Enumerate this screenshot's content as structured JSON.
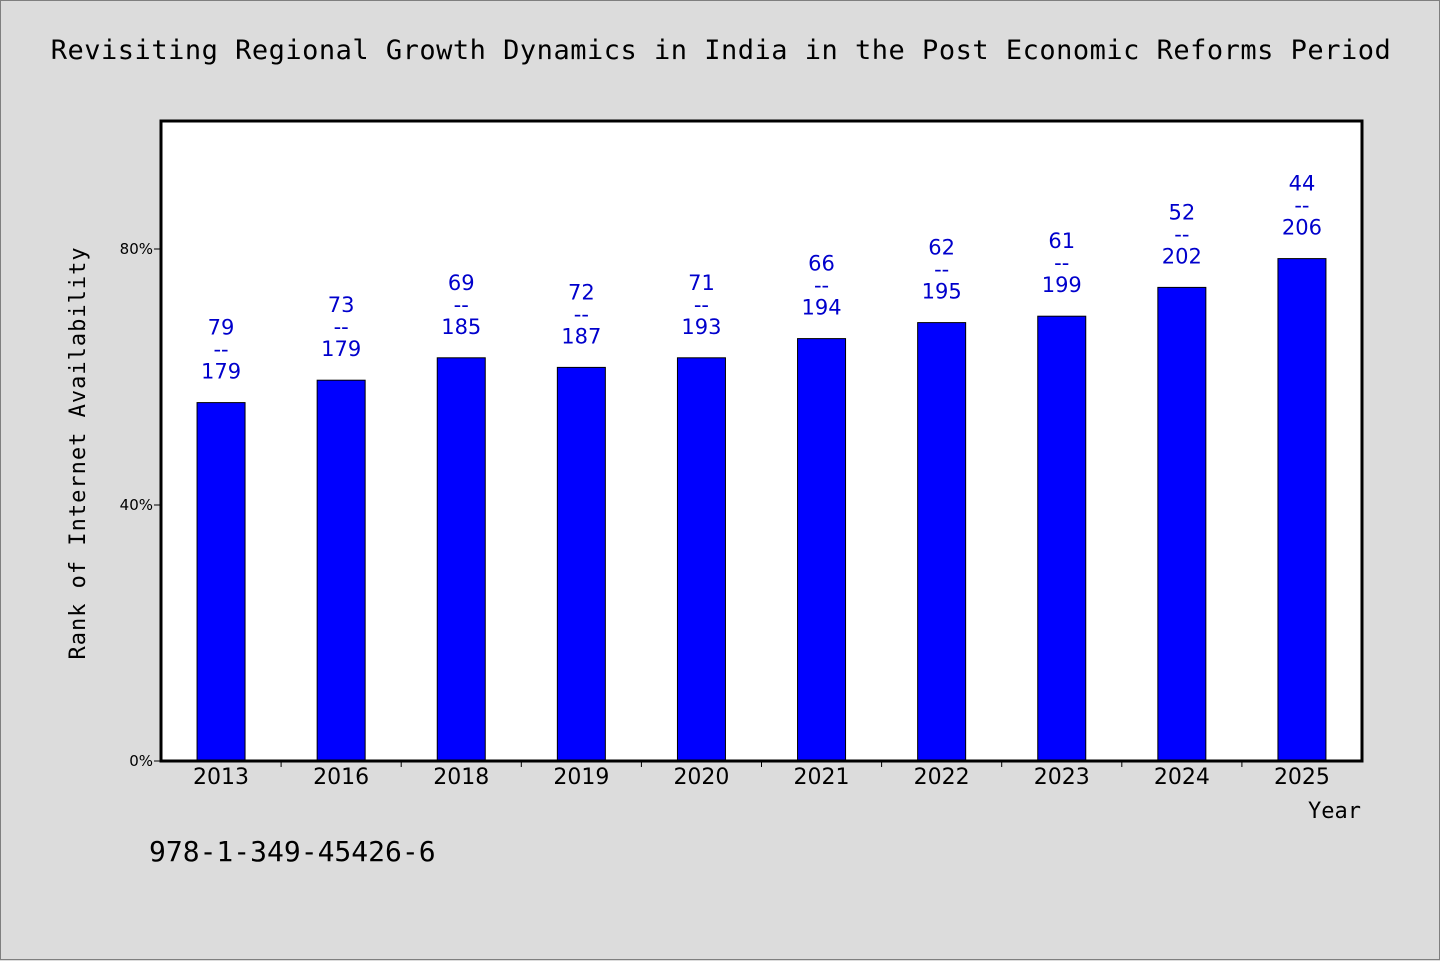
{
  "chart_data": {
    "type": "bar",
    "title": "Revisiting Regional Growth Dynamics in India in the Post Economic Reforms Period",
    "xlabel": "Year",
    "ylabel": "Rank of Internet Availability",
    "categories": [
      "2013",
      "2016",
      "2018",
      "2019",
      "2020",
      "2021",
      "2022",
      "2023",
      "2024",
      "2025"
    ],
    "values": [
      56,
      59.5,
      63,
      61.5,
      63,
      66,
      68.5,
      69.5,
      74,
      78.5
    ],
    "annotations": [
      {
        "top": "79",
        "sep": "--",
        "bottom": "179"
      },
      {
        "top": "73",
        "sep": "--",
        "bottom": "179"
      },
      {
        "top": "69",
        "sep": "--",
        "bottom": "185"
      },
      {
        "top": "72",
        "sep": "--",
        "bottom": "187"
      },
      {
        "top": "71",
        "sep": "--",
        "bottom": "193"
      },
      {
        "top": "66",
        "sep": "--",
        "bottom": "194"
      },
      {
        "top": "62",
        "sep": "--",
        "bottom": "195"
      },
      {
        "top": "61",
        "sep": "--",
        "bottom": "199"
      },
      {
        "top": "52",
        "sep": "--",
        "bottom": "202"
      },
      {
        "top": "44",
        "sep": "--",
        "bottom": "206"
      }
    ],
    "ylim": [
      0,
      100
    ],
    "yticks": [
      {
        "value": 0,
        "label": "0%"
      },
      {
        "value": 40,
        "label": "40%"
      },
      {
        "value": 80,
        "label": "80%"
      }
    ],
    "grid": false,
    "legend": "none",
    "colors": {
      "bar": "#0000ff",
      "annotation": "#0000cc",
      "background": "#dcdcdc",
      "plot_background": "#ffffff"
    }
  },
  "footer": {
    "isbn": "978-1-349-45426-6"
  }
}
